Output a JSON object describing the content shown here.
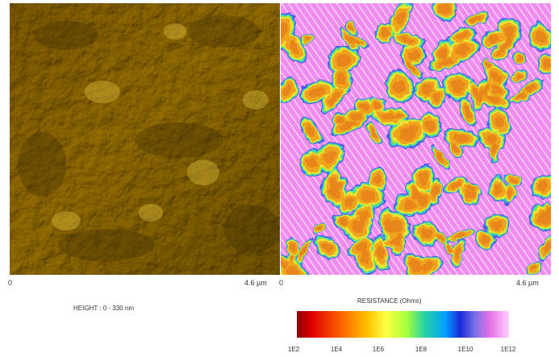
{
  "height_panel": {
    "axis_start": "0",
    "axis_end": "4.6 µm",
    "caption": "HEIGHT : 0 - 330 nm"
  },
  "resistance_panel": {
    "axis_start": "0",
    "axis_end": "4.6 µm",
    "caption": "RESISTANCE (Ohms)"
  },
  "colorbar": {
    "ticks": [
      "1E2",
      "1E4",
      "1E6",
      "1E8",
      "1E10",
      "1E12"
    ]
  }
}
